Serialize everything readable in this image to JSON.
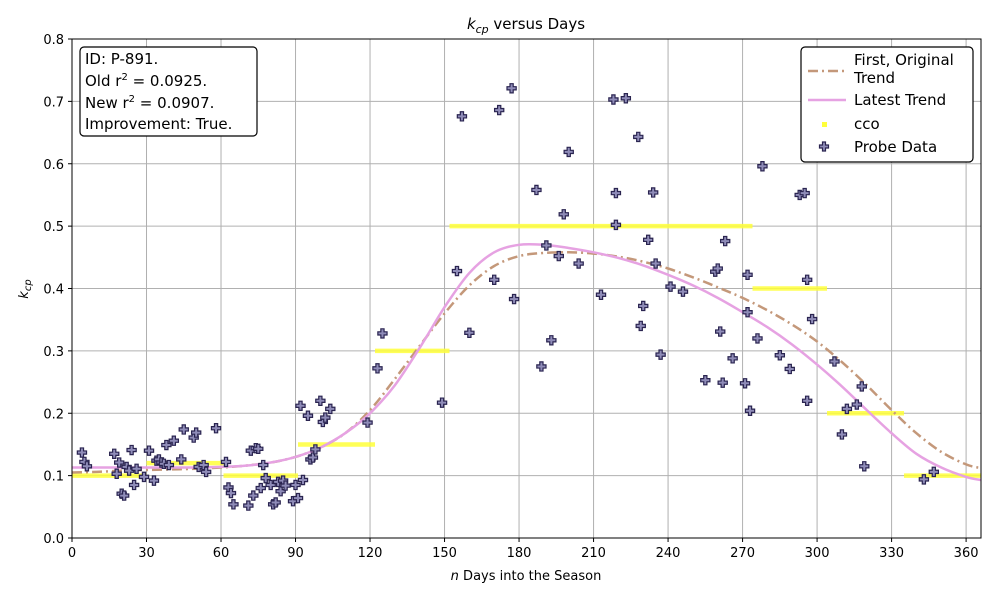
{
  "chart_data": {
    "type": "scatter",
    "title_main": "k",
    "title_sub": "cp",
    "title_rest": " versus Days",
    "xlabel_italic": "n",
    "xlabel_rest": " Days into the Season",
    "ylabel_main": "k",
    "ylabel_sub": "cp",
    "xlim": [
      0,
      366
    ],
    "ylim": [
      0.0,
      0.8
    ],
    "xticks": [
      "0",
      "30",
      "60",
      "90",
      "120",
      "150",
      "180",
      "210",
      "240",
      "270",
      "300",
      "330",
      "360"
    ],
    "yticks": [
      "0.0",
      "0.1",
      "0.2",
      "0.3",
      "0.4",
      "0.5",
      "0.6",
      "0.7",
      "0.8"
    ],
    "grid": true,
    "legend_position": "upper right",
    "info_box": {
      "id_line": "ID: P-891.",
      "old_r2_label": "Old r",
      "old_r2_value": " = 0.0925.",
      "new_r2_label": "New r",
      "new_r2_value": " = 0.0907.",
      "r2_sup": "2",
      "improvement_line": "Improvement: True."
    },
    "colors": {
      "original_trend": "#c4987a",
      "latest_trend": "#e6a2e2",
      "cco": "#ffff3a",
      "probe_fill": "#8f8cb8",
      "probe_edge": "#2a2450"
    },
    "series": [
      {
        "name_line1": "First, Original",
        "name_line2": "Trend",
        "style": "dashdot",
        "x": [
          0,
          10,
          20,
          30,
          40,
          50,
          60,
          70,
          80,
          90,
          100,
          110,
          120,
          130,
          140,
          150,
          160,
          170,
          180,
          190,
          200,
          210,
          220,
          230,
          240,
          250,
          260,
          270,
          280,
          290,
          300,
          310,
          320,
          330,
          340,
          350,
          360,
          366
        ],
        "y": [
          0.105,
          0.106,
          0.108,
          0.109,
          0.11,
          0.111,
          0.113,
          0.116,
          0.121,
          0.13,
          0.145,
          0.168,
          0.205,
          0.255,
          0.308,
          0.36,
          0.405,
          0.436,
          0.452,
          0.457,
          0.458,
          0.456,
          0.451,
          0.443,
          0.432,
          0.418,
          0.402,
          0.385,
          0.365,
          0.342,
          0.315,
          0.282,
          0.245,
          0.205,
          0.168,
          0.138,
          0.118,
          0.112
        ]
      },
      {
        "name": "Latest Trend",
        "style": "solid",
        "x": [
          0,
          10,
          20,
          30,
          40,
          50,
          60,
          70,
          80,
          90,
          100,
          110,
          120,
          130,
          140,
          150,
          160,
          170,
          180,
          190,
          200,
          210,
          220,
          230,
          240,
          250,
          260,
          270,
          280,
          290,
          300,
          310,
          320,
          330,
          340,
          350,
          360,
          366
        ],
        "y": [
          0.113,
          0.113,
          0.113,
          0.113,
          0.113,
          0.113,
          0.114,
          0.116,
          0.121,
          0.13,
          0.145,
          0.168,
          0.2,
          0.245,
          0.305,
          0.37,
          0.425,
          0.458,
          0.47,
          0.47,
          0.465,
          0.458,
          0.449,
          0.437,
          0.422,
          0.405,
          0.385,
          0.362,
          0.338,
          0.31,
          0.278,
          0.243,
          0.205,
          0.168,
          0.135,
          0.113,
          0.098,
          0.093
        ]
      },
      {
        "name": "cco",
        "style": "step-segments",
        "segments": [
          {
            "x0": 0,
            "x1": 30,
            "y": 0.1
          },
          {
            "x0": 30,
            "x1": 61,
            "y": 0.12
          },
          {
            "x0": 61,
            "x1": 91,
            "y": 0.1
          },
          {
            "x0": 91,
            "x1": 122,
            "y": 0.15
          },
          {
            "x0": 122,
            "x1": 152,
            "y": 0.3
          },
          {
            "x0": 152,
            "x1": 274,
            "y": 0.5
          },
          {
            "x0": 274,
            "x1": 304,
            "y": 0.4
          },
          {
            "x0": 304,
            "x1": 335,
            "y": 0.2
          },
          {
            "x0": 335,
            "x1": 366,
            "y": 0.1
          }
        ]
      },
      {
        "name": "Probe Data",
        "style": "scatter",
        "points": [
          [
            4,
            0.137
          ],
          [
            5,
            0.122
          ],
          [
            6,
            0.115
          ],
          [
            17,
            0.135
          ],
          [
            18,
            0.103
          ],
          [
            19,
            0.121
          ],
          [
            20,
            0.071
          ],
          [
            21,
            0.068
          ],
          [
            22,
            0.114
          ],
          [
            23,
            0.108
          ],
          [
            24,
            0.141
          ],
          [
            25,
            0.085
          ],
          [
            26,
            0.111
          ],
          [
            29,
            0.098
          ],
          [
            31,
            0.14
          ],
          [
            33,
            0.092
          ],
          [
            34,
            0.124
          ],
          [
            35,
            0.126
          ],
          [
            36,
            0.121
          ],
          [
            37,
            0.119
          ],
          [
            38,
            0.149
          ],
          [
            39,
            0.117
          ],
          [
            41,
            0.156
          ],
          [
            44,
            0.126
          ],
          [
            45,
            0.174
          ],
          [
            49,
            0.161
          ],
          [
            50,
            0.169
          ],
          [
            51,
            0.114
          ],
          [
            53,
            0.117
          ],
          [
            54,
            0.106
          ],
          [
            58,
            0.176
          ],
          [
            62,
            0.122
          ],
          [
            63,
            0.081
          ],
          [
            64,
            0.072
          ],
          [
            65,
            0.054
          ],
          [
            71,
            0.052
          ],
          [
            72,
            0.14
          ],
          [
            73,
            0.068
          ],
          [
            74,
            0.144
          ],
          [
            75,
            0.143
          ],
          [
            76,
            0.08
          ],
          [
            77,
            0.117
          ],
          [
            78,
            0.096
          ],
          [
            80,
            0.085
          ],
          [
            81,
            0.054
          ],
          [
            82,
            0.057
          ],
          [
            83,
            0.09
          ],
          [
            84,
            0.075
          ],
          [
            85,
            0.092
          ],
          [
            86,
            0.084
          ],
          [
            89,
            0.059
          ],
          [
            90,
            0.085
          ],
          [
            91,
            0.064
          ],
          [
            92,
            0.212
          ],
          [
            93,
            0.093
          ],
          [
            95,
            0.196
          ],
          [
            96,
            0.126
          ],
          [
            97,
            0.129
          ],
          [
            98,
            0.142
          ],
          [
            100,
            0.22
          ],
          [
            101,
            0.186
          ],
          [
            102,
            0.193
          ],
          [
            104,
            0.207
          ],
          [
            119,
            0.185
          ],
          [
            123,
            0.272
          ],
          [
            125,
            0.328
          ],
          [
            149,
            0.217
          ],
          [
            155,
            0.428
          ],
          [
            157,
            0.676
          ],
          [
            160,
            0.329
          ],
          [
            170,
            0.414
          ],
          [
            172,
            0.686
          ],
          [
            177,
            0.721
          ],
          [
            178,
            0.383
          ],
          [
            187,
            0.558
          ],
          [
            189,
            0.275
          ],
          [
            191,
            0.469
          ],
          [
            193,
            0.317
          ],
          [
            196,
            0.452
          ],
          [
            198,
            0.519
          ],
          [
            200,
            0.619
          ],
          [
            204,
            0.44
          ],
          [
            213,
            0.39
          ],
          [
            218,
            0.703
          ],
          [
            219,
            0.553
          ],
          [
            219,
            0.502
          ],
          [
            223,
            0.705
          ],
          [
            228,
            0.643
          ],
          [
            229,
            0.34
          ],
          [
            230,
            0.372
          ],
          [
            232,
            0.478
          ],
          [
            234,
            0.554
          ],
          [
            235,
            0.44
          ],
          [
            237,
            0.294
          ],
          [
            241,
            0.403
          ],
          [
            246,
            0.395
          ],
          [
            255,
            0.253
          ],
          [
            259,
            0.427
          ],
          [
            260,
            0.432
          ],
          [
            261,
            0.331
          ],
          [
            262,
            0.249
          ],
          [
            263,
            0.476
          ],
          [
            266,
            0.288
          ],
          [
            271,
            0.248
          ],
          [
            272,
            0.422
          ],
          [
            272,
            0.362
          ],
          [
            273,
            0.204
          ],
          [
            276,
            0.32
          ],
          [
            278,
            0.596
          ],
          [
            285,
            0.293
          ],
          [
            289,
            0.271
          ],
          [
            293,
            0.55
          ],
          [
            295,
            0.553
          ],
          [
            296,
            0.414
          ],
          [
            296,
            0.22
          ],
          [
            298,
            0.351
          ],
          [
            307,
            0.283
          ],
          [
            310,
            0.166
          ],
          [
            312,
            0.207
          ],
          [
            316,
            0.214
          ],
          [
            318,
            0.243
          ],
          [
            319,
            0.115
          ],
          [
            343,
            0.094
          ],
          [
            347,
            0.106
          ]
        ]
      }
    ]
  }
}
